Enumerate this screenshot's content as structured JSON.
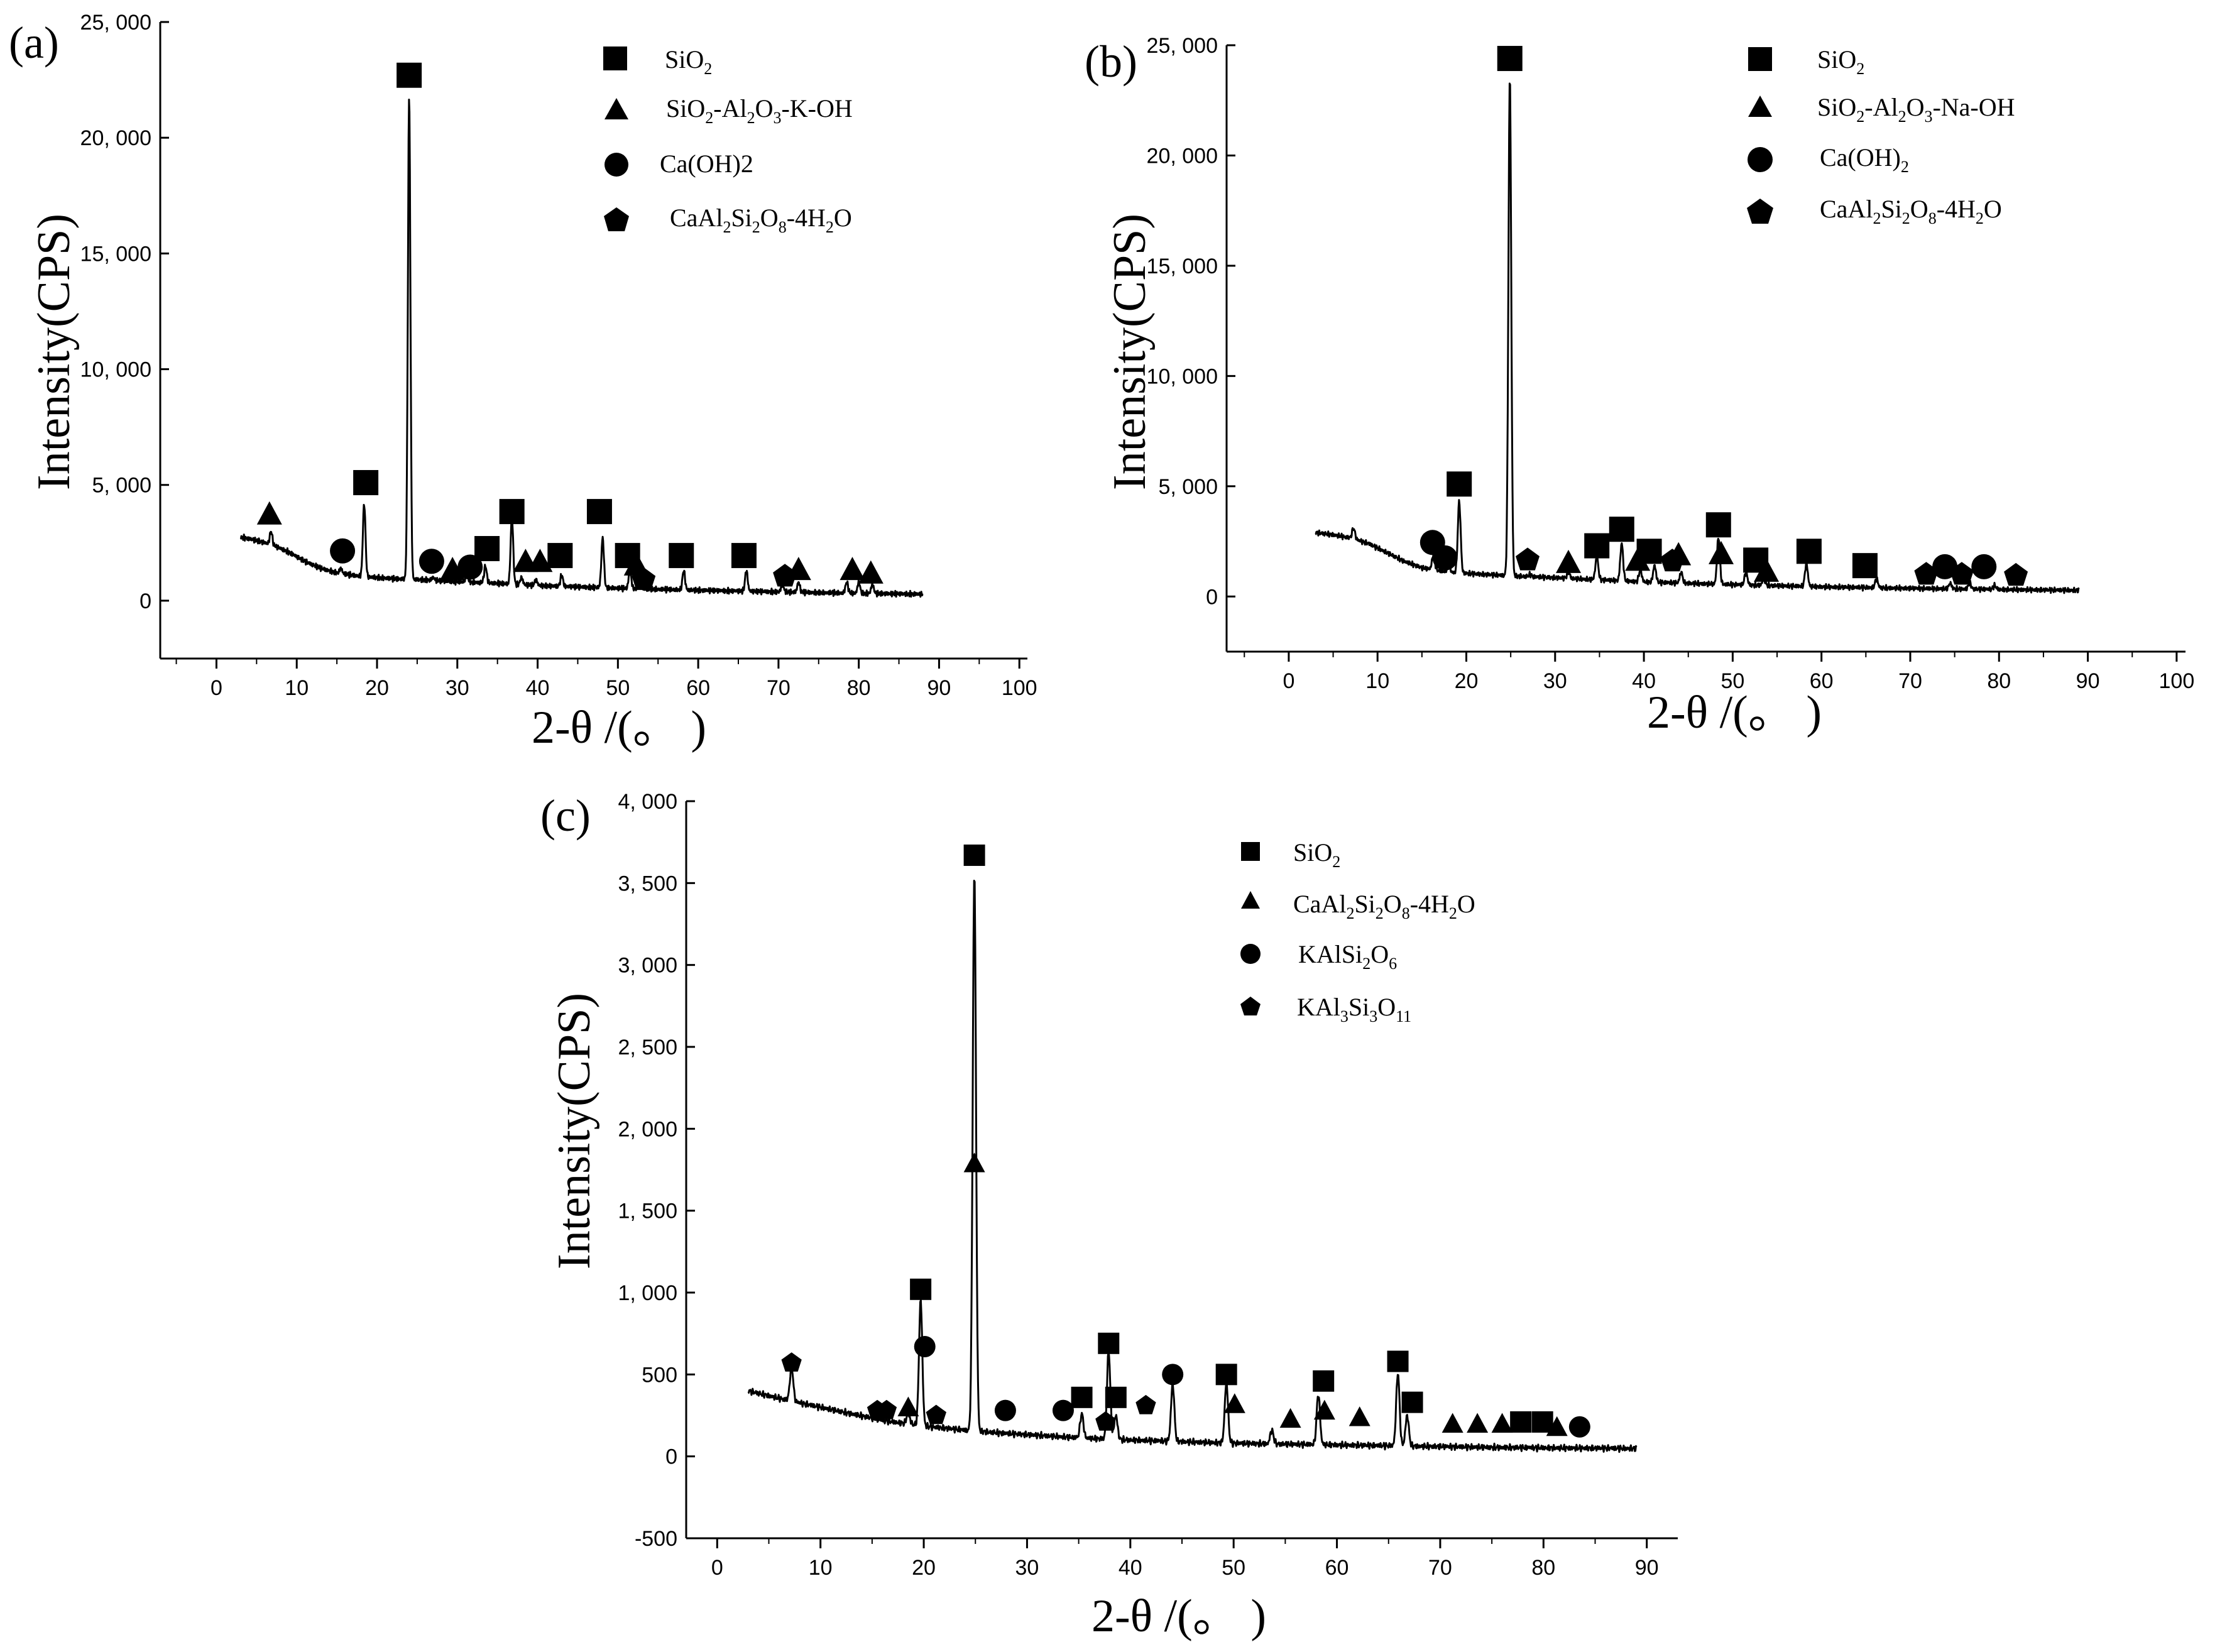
{
  "chart_data": [
    {
      "type": "line",
      "panel_label": "(a)",
      "xlabel": "2-θ /(。 )",
      "ylabel": "Intensity(CPS)",
      "xlim": [
        -7,
        101
      ],
      "ylim": [
        -2500,
        25000
      ],
      "x_ticks": [
        0,
        10,
        20,
        30,
        40,
        50,
        60,
        70,
        80,
        90,
        100
      ],
      "y_ticks": [
        0,
        5000,
        10000,
        15000,
        20000,
        25000
      ],
      "y_tick_labels": [
        "0",
        "5, 000",
        "10, 000",
        "15, 000",
        "20, 000",
        "25, 000"
      ],
      "legend": [
        {
          "shape": "square",
          "name": "SiO2"
        },
        {
          "shape": "triangle",
          "name": "SiO2-Al2O3-K-OH"
        },
        {
          "shape": "circle",
          "name": "Ca(OH)2"
        },
        {
          "shape": "pentagon",
          "name": "CaAl2Si2O8-4H2O"
        }
      ],
      "baseline": [
        [
          3,
          2750
        ],
        [
          5,
          2600
        ],
        [
          7,
          2400
        ],
        [
          9,
          2100
        ],
        [
          11,
          1700
        ],
        [
          13,
          1400
        ],
        [
          15,
          1200
        ],
        [
          18,
          1050
        ],
        [
          22,
          950
        ],
        [
          26,
          900
        ],
        [
          30,
          820
        ],
        [
          35,
          750
        ],
        [
          40,
          650
        ],
        [
          50,
          540
        ],
        [
          60,
          450
        ],
        [
          70,
          380
        ],
        [
          80,
          320
        ],
        [
          88,
          280
        ]
      ],
      "peaks": [
        [
          6.8,
          3000
        ],
        [
          15.5,
          1400
        ],
        [
          18.4,
          4200
        ],
        [
          24,
          21700
        ],
        [
          27,
          1000
        ],
        [
          31.2,
          1200
        ],
        [
          33.5,
          1500
        ],
        [
          36.8,
          3600
        ],
        [
          38,
          1000
        ],
        [
          39.8,
          900
        ],
        [
          43,
          1100
        ],
        [
          48.1,
          2700
        ],
        [
          51.5,
          1300
        ],
        [
          52.7,
          900
        ],
        [
          58.2,
          1300
        ],
        [
          66,
          1300
        ],
        [
          70.5,
          700
        ],
        [
          72.5,
          800
        ],
        [
          78.5,
          800
        ],
        [
          80,
          800
        ],
        [
          81.7,
          700
        ]
      ],
      "markers": [
        {
          "shape": "square",
          "x": 24,
          "y": 22700
        },
        {
          "shape": "square",
          "x": 18.6,
          "y": 5100
        },
        {
          "shape": "square",
          "x": 33.7,
          "y": 2250
        },
        {
          "shape": "square",
          "x": 36.8,
          "y": 3850
        },
        {
          "shape": "square",
          "x": 42.8,
          "y": 1950
        },
        {
          "shape": "square",
          "x": 47.7,
          "y": 3850
        },
        {
          "shape": "square",
          "x": 51.2,
          "y": 1950
        },
        {
          "shape": "square",
          "x": 57.9,
          "y": 1950
        },
        {
          "shape": "square",
          "x": 65.7,
          "y": 1950
        },
        {
          "shape": "triangle",
          "x": 6.6,
          "y": 3750
        },
        {
          "shape": "triangle",
          "x": 29.4,
          "y": 1350
        },
        {
          "shape": "triangle",
          "x": 38.5,
          "y": 1700
        },
        {
          "shape": "triangle",
          "x": 40.3,
          "y": 1700
        },
        {
          "shape": "triangle",
          "x": 52.3,
          "y": 1550
        },
        {
          "shape": "triangle",
          "x": 72.5,
          "y": 1350
        },
        {
          "shape": "triangle",
          "x": 79.2,
          "y": 1350
        },
        {
          "shape": "triangle",
          "x": 81.5,
          "y": 1200
        },
        {
          "shape": "circle",
          "x": 15.7,
          "y": 2150
        },
        {
          "shape": "circle",
          "x": 26.8,
          "y": 1700
        },
        {
          "shape": "circle",
          "x": 31.6,
          "y": 1450
        },
        {
          "shape": "pentagon",
          "x": 53.2,
          "y": 900
        },
        {
          "shape": "pentagon",
          "x": 70.8,
          "y": 1050
        }
      ]
    },
    {
      "type": "line",
      "panel_label": "(b)",
      "xlabel": "2-θ /(。 )",
      "ylabel": "Intensity(CPS)",
      "xlim": [
        -7,
        101
      ],
      "ylim": [
        -2500,
        25000
      ],
      "x_ticks": [
        0,
        10,
        20,
        30,
        40,
        50,
        60,
        70,
        80,
        90,
        100
      ],
      "y_ticks": [
        0,
        5000,
        10000,
        15000,
        20000,
        25000
      ],
      "y_tick_labels": [
        "0",
        "5, 000",
        "10, 000",
        "15, 000",
        "20, 000",
        "25, 000"
      ],
      "legend": [
        {
          "shape": "square",
          "name": "SiO2"
        },
        {
          "shape": "triangle",
          "name": "SiO2-Al2O3-Na-OH"
        },
        {
          "shape": "circle",
          "name": "Ca(OH)2"
        },
        {
          "shape": "pentagon",
          "name": "CaAl2Si2O8-4H2O"
        }
      ],
      "baseline": [
        [
          3,
          2900
        ],
        [
          5,
          2800
        ],
        [
          7,
          2650
        ],
        [
          9,
          2400
        ],
        [
          11,
          2000
        ],
        [
          13,
          1600
        ],
        [
          15,
          1300
        ],
        [
          18,
          1100
        ],
        [
          22,
          1000
        ],
        [
          26,
          920
        ],
        [
          30,
          850
        ],
        [
          35,
          760
        ],
        [
          40,
          660
        ],
        [
          50,
          540
        ],
        [
          60,
          440
        ],
        [
          70,
          370
        ],
        [
          80,
          320
        ],
        [
          89,
          280
        ]
      ],
      "peaks": [
        [
          7.3,
          3100
        ],
        [
          16.3,
          1900
        ],
        [
          18,
          1500
        ],
        [
          19.2,
          4300
        ],
        [
          24.9,
          23500
        ],
        [
          27.2,
          1000
        ],
        [
          31.5,
          1100
        ],
        [
          34.7,
          1800
        ],
        [
          37.5,
          2400
        ],
        [
          39.6,
          1200
        ],
        [
          41.2,
          1400
        ],
        [
          44.2,
          1100
        ],
        [
          48.4,
          2700
        ],
        [
          51.5,
          1100
        ],
        [
          53.5,
          800
        ],
        [
          58.3,
          1500
        ],
        [
          66.2,
          800
        ],
        [
          74.5,
          600
        ],
        [
          76.7,
          600
        ],
        [
          79.5,
          500
        ]
      ],
      "markers": [
        {
          "shape": "square",
          "x": 24.9,
          "y": 24400
        },
        {
          "shape": "square",
          "x": 19.2,
          "y": 5100
        },
        {
          "shape": "square",
          "x": 34.7,
          "y": 2300
        },
        {
          "shape": "square",
          "x": 37.5,
          "y": 3050
        },
        {
          "shape": "square",
          "x": 40.6,
          "y": 2050
        },
        {
          "shape": "square",
          "x": 48.4,
          "y": 3250
        },
        {
          "shape": "square",
          "x": 52.6,
          "y": 1650
        },
        {
          "shape": "square",
          "x": 58.6,
          "y": 2050
        },
        {
          "shape": "square",
          "x": 64.9,
          "y": 1400
        },
        {
          "shape": "triangle",
          "x": 31.5,
          "y": 1550
        },
        {
          "shape": "triangle",
          "x": 39.3,
          "y": 1650
        },
        {
          "shape": "triangle",
          "x": 43.9,
          "y": 1900
        },
        {
          "shape": "triangle",
          "x": 48.7,
          "y": 1950
        },
        {
          "shape": "triangle",
          "x": 53.8,
          "y": 1150
        },
        {
          "shape": "circle",
          "x": 16.2,
          "y": 2450
        },
        {
          "shape": "circle",
          "x": 17.6,
          "y": 1750
        },
        {
          "shape": "circle",
          "x": 73.9,
          "y": 1350
        },
        {
          "shape": "circle",
          "x": 78.3,
          "y": 1350
        },
        {
          "shape": "pentagon",
          "x": 26.9,
          "y": 1650
        },
        {
          "shape": "pentagon",
          "x": 43.2,
          "y": 1600
        },
        {
          "shape": "pentagon",
          "x": 71.8,
          "y": 1000
        },
        {
          "shape": "pentagon",
          "x": 75.8,
          "y": 1000
        },
        {
          "shape": "pentagon",
          "x": 81.9,
          "y": 950
        }
      ]
    },
    {
      "type": "line",
      "panel_label": "(c)",
      "xlabel": "2-θ /(。 )",
      "ylabel": "Intensity(CPS)",
      "xlim": [
        -3,
        93
      ],
      "ylim": [
        -500,
        4000
      ],
      "x_ticks": [
        0,
        10,
        20,
        30,
        40,
        50,
        60,
        70,
        80,
        90
      ],
      "y_ticks": [
        -500,
        0,
        500,
        1000,
        1500,
        2000,
        2500,
        3000,
        3500,
        4000
      ],
      "y_tick_labels": [
        "-500",
        "0",
        "500",
        "1, 000",
        "1, 500",
        "2, 000",
        "2, 500",
        "3, 000",
        "3, 500",
        "4, 000"
      ],
      "legend": [
        {
          "shape": "square",
          "name": "SiO2"
        },
        {
          "shape": "triangle",
          "name": "CaAl2Si2O8-4H2O"
        },
        {
          "shape": "circle",
          "name": "KAlSi2O6"
        },
        {
          "shape": "pentagon",
          "name": "KAl3Si3O11"
        }
      ],
      "baseline": [
        [
          3,
          400
        ],
        [
          5,
          370
        ],
        [
          7,
          340
        ],
        [
          10,
          300
        ],
        [
          13,
          260
        ],
        [
          16,
          220
        ],
        [
          20,
          185
        ],
        [
          24,
          160
        ],
        [
          28,
          140
        ],
        [
          32,
          125
        ],
        [
          36,
          110
        ],
        [
          40,
          100
        ],
        [
          45,
          90
        ],
        [
          50,
          80
        ],
        [
          55,
          75
        ],
        [
          60,
          70
        ],
        [
          65,
          65
        ],
        [
          70,
          60
        ],
        [
          75,
          55
        ],
        [
          80,
          52
        ],
        [
          85,
          50
        ],
        [
          89,
          48
        ]
      ],
      "peaks": [
        [
          7.2,
          550
        ],
        [
          18.5,
          260
        ],
        [
          19.7,
          950
        ],
        [
          24.9,
          3550
        ],
        [
          35.3,
          260
        ],
        [
          37.9,
          640
        ],
        [
          38.6,
          250
        ],
        [
          44.1,
          440
        ],
        [
          49.3,
          450
        ],
        [
          53.7,
          160
        ],
        [
          58.2,
          380
        ],
        [
          65.9,
          510
        ],
        [
          66.8,
          250
        ]
      ],
      "markers": [
        {
          "shape": "square",
          "x": 24.9,
          "y": 3670
        },
        {
          "shape": "square",
          "x": 19.7,
          "y": 1020
        },
        {
          "shape": "square",
          "x": 35.3,
          "y": 360
        },
        {
          "shape": "square",
          "x": 37.9,
          "y": 690
        },
        {
          "shape": "square",
          "x": 38.6,
          "y": 360
        },
        {
          "shape": "square",
          "x": 49.3,
          "y": 500
        },
        {
          "shape": "square",
          "x": 58.7,
          "y": 460
        },
        {
          "shape": "square",
          "x": 65.9,
          "y": 580
        },
        {
          "shape": "square",
          "x": 67.3,
          "y": 330
        },
        {
          "shape": "square",
          "x": 77.8,
          "y": 210
        },
        {
          "shape": "square",
          "x": 79.9,
          "y": 210
        },
        {
          "shape": "triangle",
          "x": 24.9,
          "y": 1790
        },
        {
          "shape": "triangle",
          "x": 18.5,
          "y": 300
        },
        {
          "shape": "triangle",
          "x": 50.1,
          "y": 320
        },
        {
          "shape": "triangle",
          "x": 55.5,
          "y": 230
        },
        {
          "shape": "triangle",
          "x": 58.8,
          "y": 280
        },
        {
          "shape": "triangle",
          "x": 62.2,
          "y": 240
        },
        {
          "shape": "triangle",
          "x": 71.2,
          "y": 200
        },
        {
          "shape": "triangle",
          "x": 73.6,
          "y": 200
        },
        {
          "shape": "triangle",
          "x": 76,
          "y": 200
        },
        {
          "shape": "triangle",
          "x": 81.3,
          "y": 180
        },
        {
          "shape": "circle",
          "x": 20.1,
          "y": 670
        },
        {
          "shape": "circle",
          "x": 27.9,
          "y": 280
        },
        {
          "shape": "circle",
          "x": 33.5,
          "y": 280
        },
        {
          "shape": "circle",
          "x": 44.1,
          "y": 500
        },
        {
          "shape": "circle",
          "x": 83.5,
          "y": 180
        },
        {
          "shape": "pentagon",
          "x": 7.2,
          "y": 570
        },
        {
          "shape": "pentagon",
          "x": 15.5,
          "y": 280
        },
        {
          "shape": "pentagon",
          "x": 16.4,
          "y": 280
        },
        {
          "shape": "pentagon",
          "x": 21.2,
          "y": 250
        },
        {
          "shape": "pentagon",
          "x": 37.6,
          "y": 210
        },
        {
          "shape": "pentagon",
          "x": 41.5,
          "y": 310
        }
      ]
    }
  ]
}
